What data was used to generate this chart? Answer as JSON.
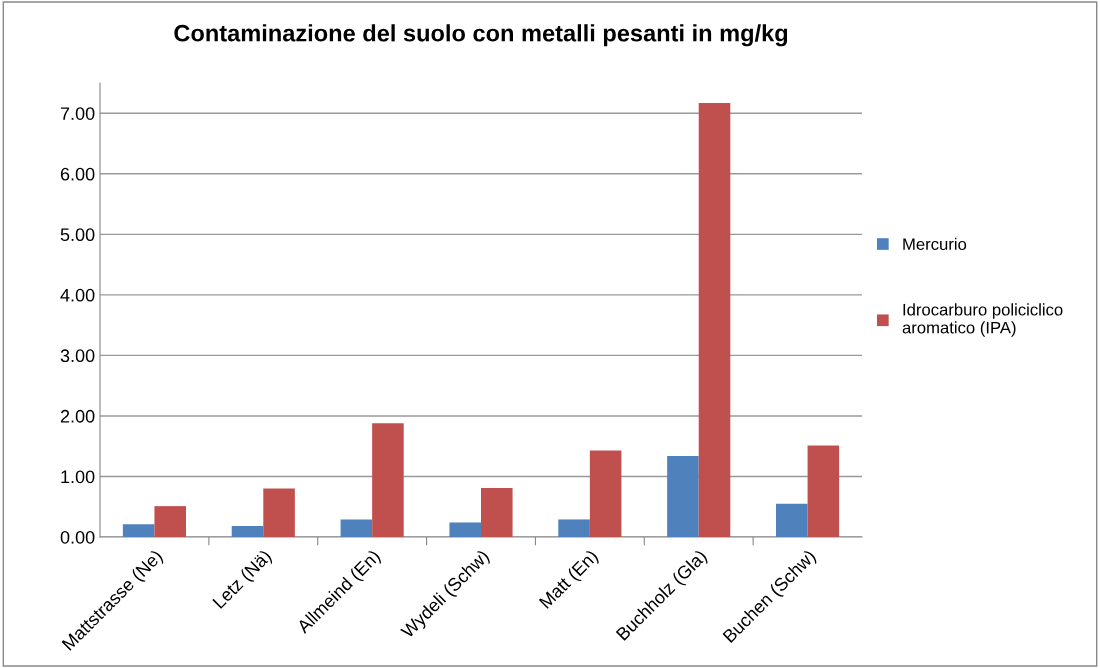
{
  "chart_data": {
    "type": "bar",
    "title": "Contaminazione del suolo con metalli pesanti in mg/kg",
    "categories": [
      "Mattstrasse (Ne)",
      "Letz (Nä)",
      "Allmeind (En)",
      "Wydeli (Schw)",
      "Matt (En)",
      "Buchholz (Gla)",
      "Buchen (Schw)"
    ],
    "series": [
      {
        "name": "Mercurio",
        "color": "#4f81bd",
        "values": [
          0.21,
          0.18,
          0.29,
          0.24,
          0.29,
          1.34,
          0.55
        ]
      },
      {
        "name": "Idrocarburo policiclico aromatico (IPA)",
        "color": "#c0504d",
        "values": [
          0.51,
          0.8,
          1.88,
          0.81,
          1.43,
          7.17,
          1.51
        ]
      }
    ],
    "ylim": [
      0,
      7.5
    ],
    "yticks": [
      {
        "value": 0,
        "label": "0.00"
      },
      {
        "value": 1,
        "label": "1.00"
      },
      {
        "value": 2,
        "label": "2.00"
      },
      {
        "value": 3,
        "label": "3.00"
      },
      {
        "value": 4,
        "label": "4.00"
      },
      {
        "value": 5,
        "label": "5.00"
      },
      {
        "value": 6,
        "label": "6.00"
      },
      {
        "value": 7,
        "label": "7.00"
      }
    ],
    "grid": "y",
    "legend": "right"
  }
}
